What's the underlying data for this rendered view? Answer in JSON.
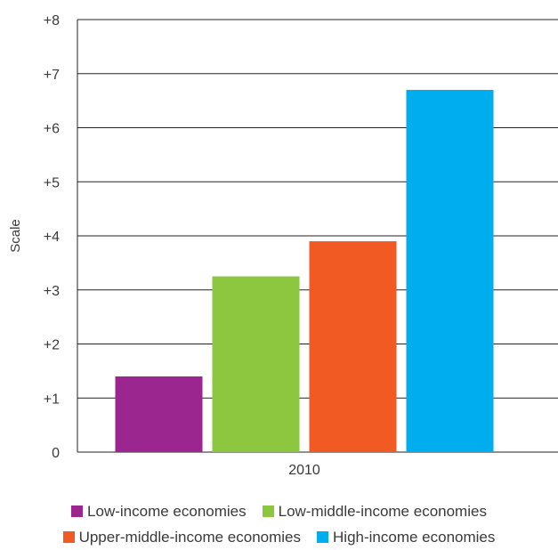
{
  "chart_data": {
    "type": "bar",
    "xlabel": "",
    "ylabel": "Scale",
    "ylim": [
      0,
      8
    ],
    "yticks": [
      {
        "value": 0,
        "label": "0"
      },
      {
        "value": 1,
        "label": "+1"
      },
      {
        "value": 2,
        "label": "+2"
      },
      {
        "value": 3,
        "label": "+3"
      },
      {
        "value": 4,
        "label": "+4"
      },
      {
        "value": 5,
        "label": "+5"
      },
      {
        "value": 6,
        "label": "+6"
      },
      {
        "value": 7,
        "label": "+7"
      },
      {
        "value": 8,
        "label": "+8"
      }
    ],
    "categories": [
      "2010"
    ],
    "grid": true,
    "legend_position": "bottom",
    "series": [
      {
        "name": "Low-income economies",
        "color": "#9b2690",
        "values": [
          1.4
        ]
      },
      {
        "name": "Low-middle-income economies",
        "color": "#8dc63f",
        "values": [
          3.25
        ]
      },
      {
        "name": "Upper-middle-income economies",
        "color": "#f15a22",
        "values": [
          3.9
        ]
      },
      {
        "name": "High-income economies",
        "color": "#00aeef",
        "values": [
          6.7
        ]
      }
    ]
  }
}
